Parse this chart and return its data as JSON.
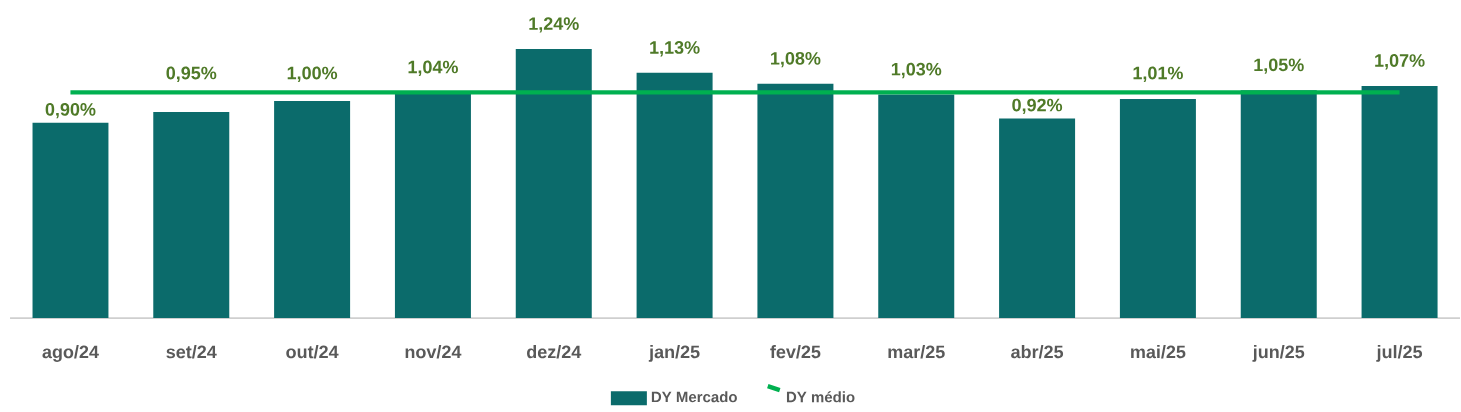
{
  "chart_data": {
    "type": "bar",
    "categories": [
      "ago/24",
      "set/24",
      "out/24",
      "nov/24",
      "dez/24",
      "jan/25",
      "fev/25",
      "mar/25",
      "abr/25",
      "mai/25",
      "jun/25",
      "jul/25"
    ],
    "series": [
      {
        "name": "DY Mercado",
        "color": "#0b6b6b",
        "values": [
          0.9,
          0.95,
          1.0,
          1.04,
          1.24,
          1.13,
          1.08,
          1.03,
          0.92,
          1.01,
          1.05,
          1.07
        ],
        "value_labels": [
          "0,90%",
          "0,95%",
          "1,00%",
          "1,04%",
          "1,24%",
          "1,13%",
          "1,08%",
          "1,03%",
          "0,92%",
          "1,01%",
          "1,05%",
          "1,07%"
        ]
      },
      {
        "name": "DY médio",
        "type": "line",
        "color": "#00b050",
        "values": [
          1.04,
          1.04,
          1.04,
          1.04,
          1.04,
          1.04,
          1.04,
          1.04,
          1.04,
          1.04,
          1.04,
          1.04
        ]
      }
    ],
    "tick_labels": "x",
    "legend": "bottom"
  }
}
